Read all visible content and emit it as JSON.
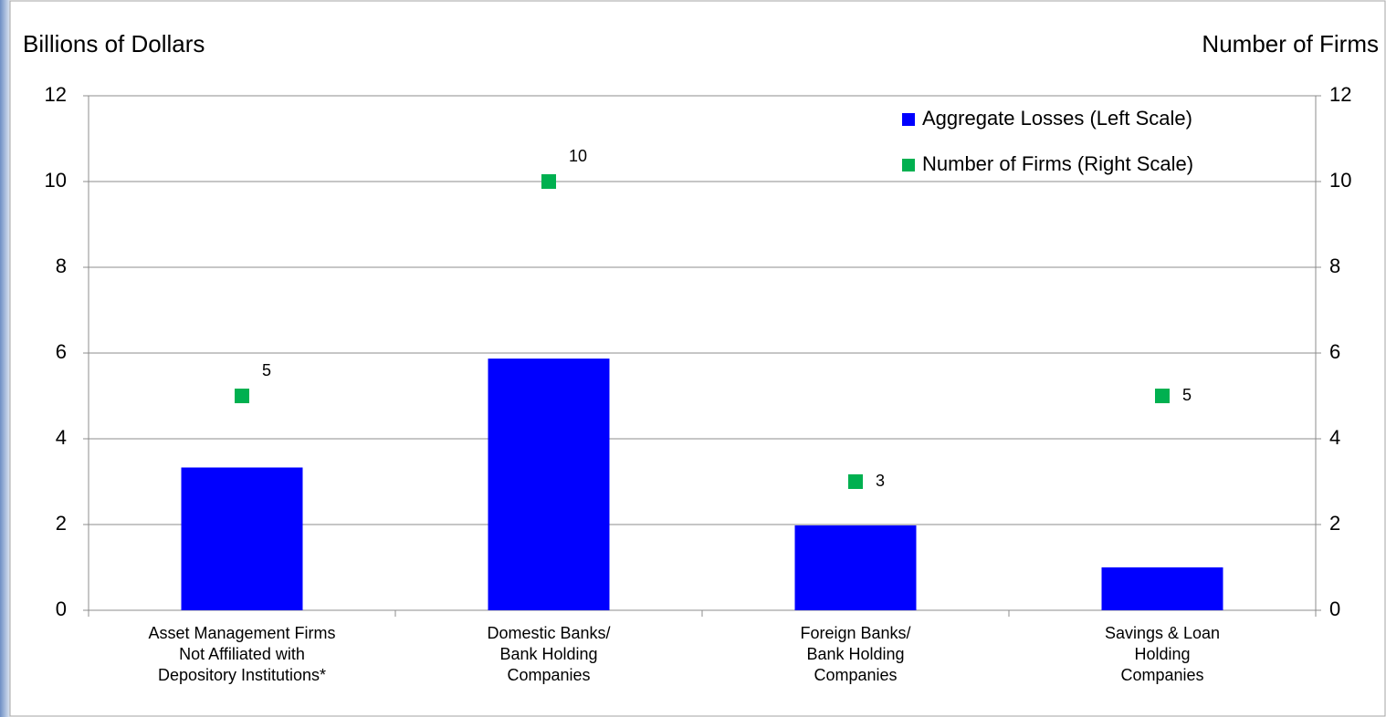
{
  "chart_data": {
    "type": "bar_scatter",
    "y_axis_title": "Billions of Dollars",
    "y2_axis_title": "Number of Firms",
    "categories": [
      "Asset Management Firms\nNot Affiliated with\nDepository Institutions*",
      "Domestic Banks/\nBank Holding\nCompanies",
      "Foreign Banks/\nBank Holding\nCompanies",
      "Savings & Loan\nHolding\nCompanies"
    ],
    "series": [
      {
        "name": "Aggregate Losses (Left Scale)",
        "type": "bar",
        "color": "#0000ff",
        "values": [
          3.33,
          5.87,
          1.98,
          1.0
        ]
      },
      {
        "name": "Number of Firms (Right Scale)",
        "type": "scatter",
        "axis": "y2",
        "color": "#00b050",
        "values": [
          5,
          10,
          3,
          5
        ]
      }
    ],
    "ylim": [
      0,
      12
    ],
    "yticks": [
      0,
      2,
      4,
      6,
      8,
      10,
      12
    ],
    "y2lim": [
      0,
      12
    ],
    "y2ticks": [
      0,
      2,
      4,
      6,
      8,
      10,
      12
    ],
    "grid": true,
    "legend": "top-right"
  }
}
